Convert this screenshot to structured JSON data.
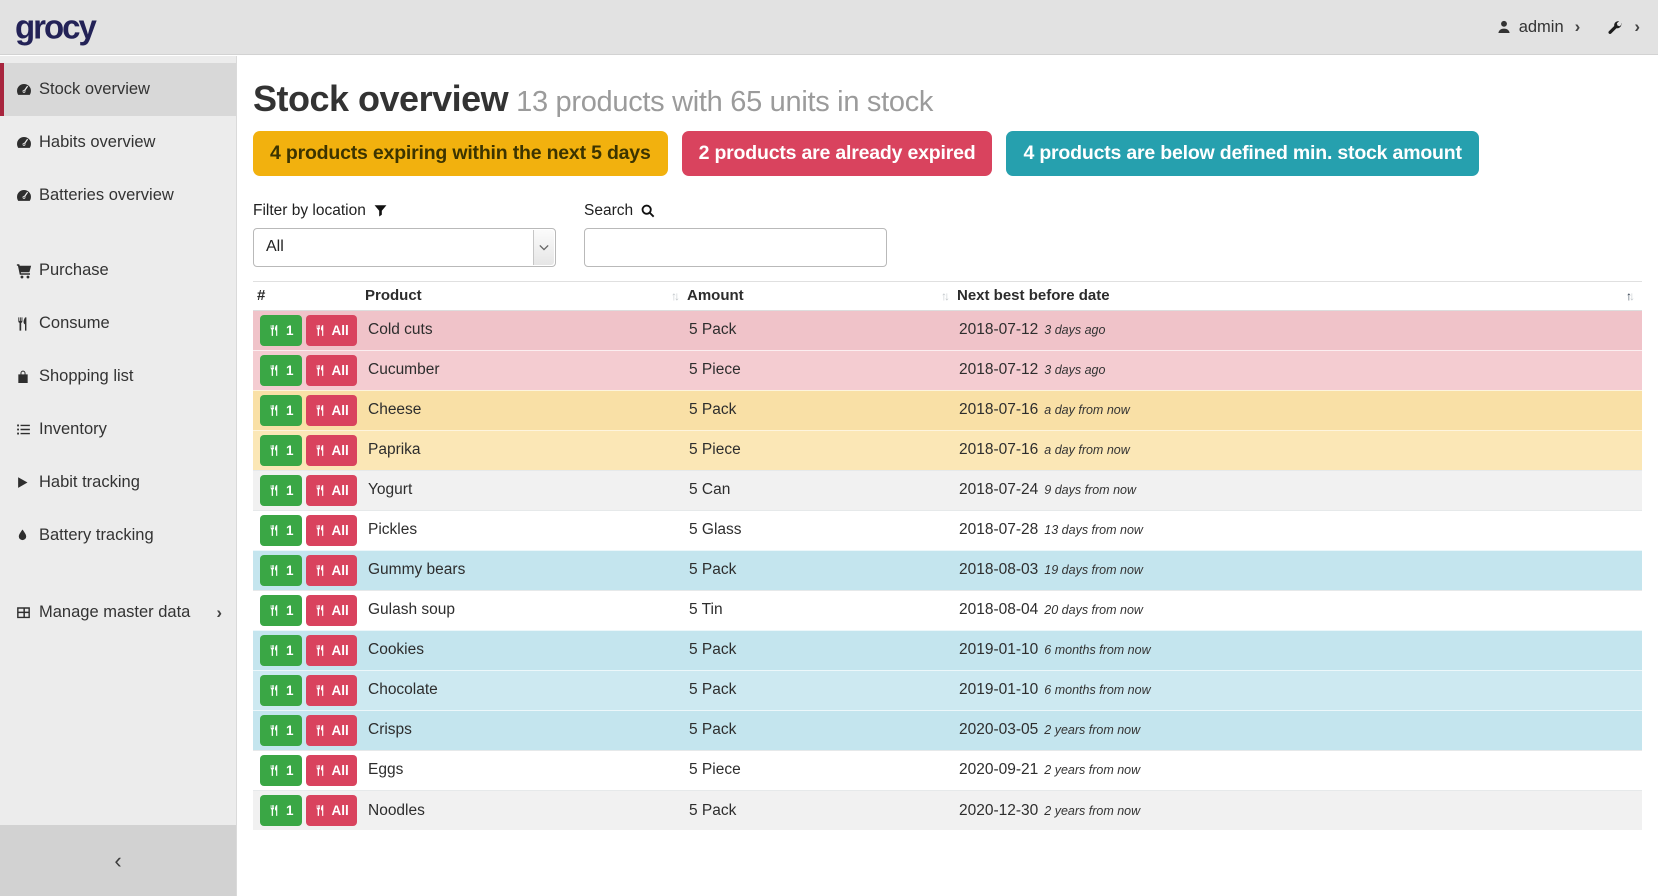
{
  "topbar": {
    "logo": "grocy",
    "user": "admin"
  },
  "sidebar": {
    "items": [
      {
        "label": "Stock overview",
        "icon": "tachometer-icon",
        "active": true,
        "gap": ""
      },
      {
        "label": "Habits overview",
        "icon": "tachometer-icon",
        "active": false,
        "gap": ""
      },
      {
        "label": "Batteries overview",
        "icon": "tachometer-icon",
        "active": false,
        "gap": ""
      },
      {
        "label": "Purchase",
        "icon": "cart-icon",
        "active": false,
        "gap": "gap"
      },
      {
        "label": "Consume",
        "icon": "utensils-icon",
        "active": false,
        "gap": ""
      },
      {
        "label": "Shopping list",
        "icon": "shopping-bag-icon",
        "active": false,
        "gap": ""
      },
      {
        "label": "Inventory",
        "icon": "list-icon",
        "active": false,
        "gap": ""
      },
      {
        "label": "Habit tracking",
        "icon": "play-icon",
        "active": false,
        "gap": ""
      },
      {
        "label": "Battery tracking",
        "icon": "droplet-icon",
        "active": false,
        "gap": ""
      },
      {
        "label": "Manage master data",
        "icon": "table-icon",
        "active": false,
        "gap": "gap2",
        "submenu": true
      }
    ],
    "collapse_icon": "chevron-left-icon"
  },
  "header": {
    "title": "Stock overview",
    "subtitle": "13 products with 65 units in stock"
  },
  "alerts": [
    {
      "label": "4 products expiring within the next 5 days",
      "type": "warning",
      "color": "#f2b10e"
    },
    {
      "label": "2 products are already expired",
      "type": "danger",
      "color": "#d9435e"
    },
    {
      "label": "4 products are below defined min. stock amount",
      "type": "info",
      "color": "#26a0ae"
    }
  ],
  "filters": {
    "location_label": "Filter by location",
    "location_value": "All",
    "search_label": "Search",
    "search_placeholder": "",
    "search_value": ""
  },
  "table": {
    "columns": [
      "#",
      "Product",
      "Amount",
      "Next best before date"
    ],
    "sorted_column": "Next best before date",
    "sort_direction": "ascending",
    "consume_one_label": "1",
    "consume_all_label": "All",
    "rows": [
      {
        "product": "Cold cuts",
        "amount": "5 Pack",
        "date": "2018-07-12",
        "relative": "3 days ago",
        "status": "expired"
      },
      {
        "product": "Cucumber",
        "amount": "5 Piece",
        "date": "2018-07-12",
        "relative": "3 days ago",
        "status": "expired"
      },
      {
        "product": "Cheese",
        "amount": "5 Pack",
        "date": "2018-07-16",
        "relative": "a day from now",
        "status": "expiring"
      },
      {
        "product": "Paprika",
        "amount": "5 Piece",
        "date": "2018-07-16",
        "relative": "a day from now",
        "status": "expiring"
      },
      {
        "product": "Yogurt",
        "amount": "5 Can",
        "date": "2018-07-24",
        "relative": "9 days from now",
        "status": ""
      },
      {
        "product": "Pickles",
        "amount": "5 Glass",
        "date": "2018-07-28",
        "relative": "13 days from now",
        "status": ""
      },
      {
        "product": "Gummy bears",
        "amount": "5 Pack",
        "date": "2018-08-03",
        "relative": "19 days from now",
        "status": "belowmin"
      },
      {
        "product": "Gulash soup",
        "amount": "5 Tin",
        "date": "2018-08-04",
        "relative": "20 days from now",
        "status": ""
      },
      {
        "product": "Cookies",
        "amount": "5 Pack",
        "date": "2019-01-10",
        "relative": "6 months from now",
        "status": "belowmin"
      },
      {
        "product": "Chocolate",
        "amount": "5 Pack",
        "date": "2019-01-10",
        "relative": "6 months from now",
        "status": "belowmin"
      },
      {
        "product": "Crisps",
        "amount": "5 Pack",
        "date": "2020-03-05",
        "relative": "2 years from now",
        "status": "belowmin"
      },
      {
        "product": "Eggs",
        "amount": "5 Piece",
        "date": "2020-09-21",
        "relative": "2 years from now",
        "status": ""
      },
      {
        "product": "Noodles",
        "amount": "5 Pack",
        "date": "2020-12-30",
        "relative": "2 years from now",
        "status": ""
      }
    ]
  },
  "colors": {
    "brand_logo": "#232257",
    "active_item_accent": "#a8253e",
    "consume_one_button": "#3aa745",
    "consume_all_button": "#d9435e",
    "row_expired": "#f2c8cd",
    "row_expiring": "#fae4ae",
    "row_below_min": "#c9e7ef"
  }
}
